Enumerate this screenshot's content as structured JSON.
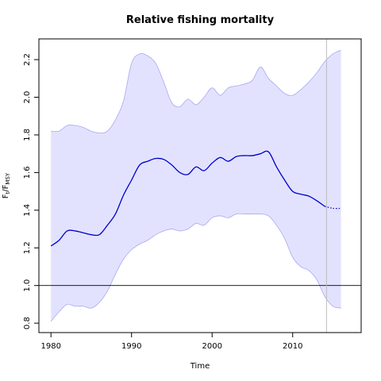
{
  "chart_data": {
    "type": "line",
    "title": "Relative fishing mortality",
    "xlabel": "Time",
    "ylabel": {
      "main1": "F",
      "sub1": "t",
      "sep": "/F",
      "sub2": "MSY"
    },
    "xlim": [
      1978.5,
      2018.5
    ],
    "ylim": [
      0.75,
      2.31
    ],
    "xticks": [
      1980,
      1990,
      2000,
      2010
    ],
    "xtick_labels": [
      "1980",
      "1990",
      "2000",
      "2010"
    ],
    "yticks": [
      0.8,
      1.0,
      1.2,
      1.4,
      1.6,
      1.8,
      2.0,
      2.2
    ],
    "ytick_labels": [
      "0.8",
      "1.0",
      "1.2",
      "1.4",
      "1.6",
      "1.8",
      "2.0",
      "2.2"
    ],
    "reference_line_y": 1.0,
    "vertical_line_x": 2014.2,
    "colors": {
      "estimate": "#0000cc",
      "band_fill": "#e2e2ff",
      "band_edge": "#a8a8f0",
      "vline": "#bbbbbb"
    },
    "series": [
      {
        "x": [
          1980,
          1981,
          1982,
          1983,
          1984,
          1985,
          1986,
          1987,
          1988,
          1989,
          1990,
          1991,
          1992,
          1993,
          1994,
          1995,
          1996,
          1997,
          1998,
          1999,
          2000,
          2001,
          2002,
          2003,
          2004,
          2005,
          2006,
          2007,
          2008,
          2009,
          2010,
          2011,
          2012,
          2013,
          2014
        ],
        "values": [
          1.21,
          1.24,
          1.29,
          1.29,
          1.28,
          1.27,
          1.27,
          1.32,
          1.38,
          1.48,
          1.56,
          1.64,
          1.66,
          1.675,
          1.67,
          1.64,
          1.6,
          1.59,
          1.63,
          1.61,
          1.65,
          1.68,
          1.66,
          1.685,
          1.69,
          1.69,
          1.7,
          1.71,
          1.63,
          1.56,
          1.5,
          1.485,
          1.475,
          1.45,
          1.42
        ]
      },
      {
        "x": [
          2014,
          2015,
          2016
        ],
        "values": [
          1.42,
          1.41,
          1.41
        ],
        "style": "dotted"
      }
    ],
    "band_upper": {
      "x": [
        1980,
        1981,
        1982,
        1983,
        1984,
        1985,
        1986,
        1987,
        1988,
        1989,
        1990,
        1991,
        1992,
        1993,
        1994,
        1995,
        1996,
        1997,
        1998,
        1999,
        2000,
        2001,
        2002,
        2003,
        2004,
        2005,
        2006,
        2007,
        2008,
        2009,
        2010,
        2011,
        2012,
        2013,
        2014,
        2015,
        2016
      ],
      "values": [
        1.82,
        1.82,
        1.85,
        1.85,
        1.84,
        1.82,
        1.81,
        1.82,
        1.88,
        1.98,
        2.18,
        2.23,
        2.22,
        2.18,
        2.08,
        1.97,
        1.95,
        1.99,
        1.96,
        2.0,
        2.05,
        2.01,
        2.05,
        2.06,
        2.07,
        2.09,
        2.16,
        2.1,
        2.06,
        2.02,
        2.01,
        2.04,
        2.08,
        2.13,
        2.19,
        2.23,
        2.25
      ]
    },
    "band_lower": {
      "x": [
        1980,
        1981,
        1982,
        1983,
        1984,
        1985,
        1986,
        1987,
        1988,
        1989,
        1990,
        1991,
        1992,
        1993,
        1994,
        1995,
        1996,
        1997,
        1998,
        1999,
        2000,
        2001,
        2002,
        2003,
        2004,
        2005,
        2006,
        2007,
        2008,
        2009,
        2010,
        2011,
        2012,
        2013,
        2014,
        2015,
        2016
      ],
      "values": [
        0.81,
        0.86,
        0.9,
        0.89,
        0.89,
        0.88,
        0.91,
        0.97,
        1.06,
        1.14,
        1.19,
        1.22,
        1.24,
        1.27,
        1.29,
        1.3,
        1.29,
        1.3,
        1.33,
        1.32,
        1.36,
        1.37,
        1.36,
        1.38,
        1.38,
        1.38,
        1.38,
        1.37,
        1.32,
        1.25,
        1.15,
        1.1,
        1.08,
        1.03,
        0.94,
        0.89,
        0.88
      ]
    }
  }
}
